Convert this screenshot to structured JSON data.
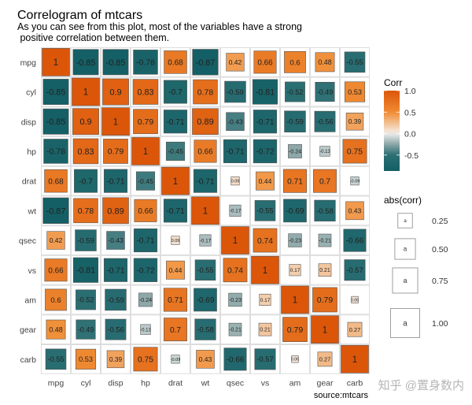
{
  "chart_data": {
    "type": "heatmap",
    "title": "Correlogram of mtcars",
    "subtitle_lines": [
      "As you can see from this plot, most of the variables have a strong",
      " positive correlation between them."
    ],
    "caption": "source:mtcars",
    "variables": [
      "mpg",
      "cyl",
      "disp",
      "hp",
      "drat",
      "wt",
      "qsec",
      "vs",
      "am",
      "gear",
      "carb"
    ],
    "matrix": [
      [
        1,
        -0.85,
        -0.85,
        -0.78,
        0.68,
        -0.87,
        0.42,
        0.66,
        0.6,
        0.48,
        -0.55
      ],
      [
        -0.85,
        1,
        0.9,
        0.83,
        -0.7,
        0.78,
        -0.59,
        -0.81,
        -0.52,
        -0.49,
        0.53
      ],
      [
        -0.85,
        0.9,
        1,
        0.79,
        -0.71,
        0.89,
        -0.43,
        -0.71,
        -0.59,
        -0.56,
        0.39
      ],
      [
        -0.78,
        0.83,
        0.79,
        1,
        -0.45,
        0.66,
        -0.71,
        -0.72,
        -0.24,
        -0.13,
        0.75
      ],
      [
        0.68,
        -0.7,
        -0.71,
        -0.45,
        1,
        -0.71,
        0.09,
        0.44,
        0.71,
        0.7,
        -0.09
      ],
      [
        -0.87,
        0.78,
        0.89,
        0.66,
        -0.71,
        1,
        -0.17,
        -0.55,
        -0.69,
        -0.58,
        0.43
      ],
      [
        0.42,
        -0.59,
        -0.43,
        -0.71,
        0.09,
        -0.17,
        1,
        0.74,
        -0.23,
        -0.21,
        -0.66
      ],
      [
        0.66,
        -0.81,
        -0.71,
        -0.72,
        0.44,
        -0.55,
        0.74,
        1,
        0.17,
        0.21,
        -0.57
      ],
      [
        0.6,
        -0.52,
        -0.59,
        -0.24,
        0.71,
        -0.69,
        -0.23,
        0.17,
        1,
        0.79,
        0.06
      ],
      [
        0.48,
        -0.49,
        -0.56,
        -0.13,
        0.7,
        -0.58,
        -0.21,
        0.21,
        0.79,
        1,
        0.27
      ],
      [
        -0.55,
        0.53,
        0.39,
        0.75,
        -0.09,
        0.43,
        -0.66,
        -0.57,
        0.06,
        0.27,
        1
      ]
    ],
    "fill_legend": {
      "title": "Corr",
      "ticks": [
        "1.0",
        "0.5",
        "0.0",
        "-0.5"
      ],
      "tick_values": [
        1,
        0.5,
        0,
        -0.5
      ]
    },
    "size_legend": {
      "title": "abs(corr)",
      "key_glyph": "a",
      "labels": [
        "0.25",
        "0.50",
        "0.75",
        "1.00"
      ],
      "values": [
        0.25,
        0.5,
        0.75,
        1
      ]
    },
    "colors": {
      "low": "#0a5a60",
      "mid": "#f2f2f2",
      "high": "#dc560a"
    }
  },
  "watermark": "知乎 @置身数内"
}
